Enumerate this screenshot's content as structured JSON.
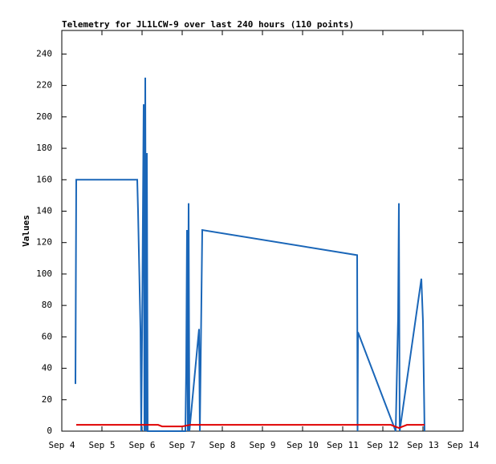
{
  "chart_data": {
    "type": "line",
    "title": "Telemetry for JL1LCW-9 over last 240 hours (110 points)",
    "y_label": "Values",
    "xlim": [
      4,
      14
    ],
    "xticks": [
      {
        "value": 4,
        "label": "Sep 4"
      },
      {
        "value": 5,
        "label": "Sep 5"
      },
      {
        "value": 6,
        "label": "Sep 6"
      },
      {
        "value": 7,
        "label": "Sep 7"
      },
      {
        "value": 8,
        "label": "Sep 8"
      },
      {
        "value": 9,
        "label": "Sep 9"
      },
      {
        "value": 10,
        "label": "Sep 10"
      },
      {
        "value": 11,
        "label": "Sep 11"
      },
      {
        "value": 12,
        "label": "Sep 12"
      },
      {
        "value": 13,
        "label": "Sep 13"
      },
      {
        "value": 14,
        "label": "Sep 14"
      }
    ],
    "ylim": [
      0,
      255
    ],
    "yticks": [
      0,
      20,
      40,
      60,
      80,
      100,
      120,
      140,
      160,
      180,
      200,
      220,
      240
    ],
    "series": [
      {
        "color": "#1a66b8",
        "x": [
          4.34,
          4.36,
          5.88,
          5.9,
          5.96,
          5.98,
          6.0,
          6.04,
          6.06,
          6.08,
          6.1,
          6.12,
          6.14,
          7.08,
          7.1,
          7.12,
          7.14,
          7.16,
          7.18,
          7.42,
          7.44,
          7.5,
          11.36,
          11.37,
          11.38,
          12.32,
          12.38,
          12.4,
          12.42,
          12.96,
          13.0,
          13.04
        ],
        "values": [
          30,
          160,
          160,
          140,
          65,
          0,
          60,
          208,
          0,
          225,
          0,
          177,
          0,
          0,
          40,
          128,
          0,
          145,
          0,
          65,
          0,
          128,
          112,
          0,
          63,
          0,
          72,
          145,
          0,
          97,
          70,
          0
        ]
      },
      {
        "color": "#e00000",
        "x": [
          4.36,
          6.4,
          6.5,
          7.0,
          7.2,
          12.2,
          12.4,
          12.6,
          13.04
        ],
        "values": [
          4,
          4,
          3,
          3,
          4,
          4,
          2,
          4,
          4
        ]
      }
    ]
  }
}
